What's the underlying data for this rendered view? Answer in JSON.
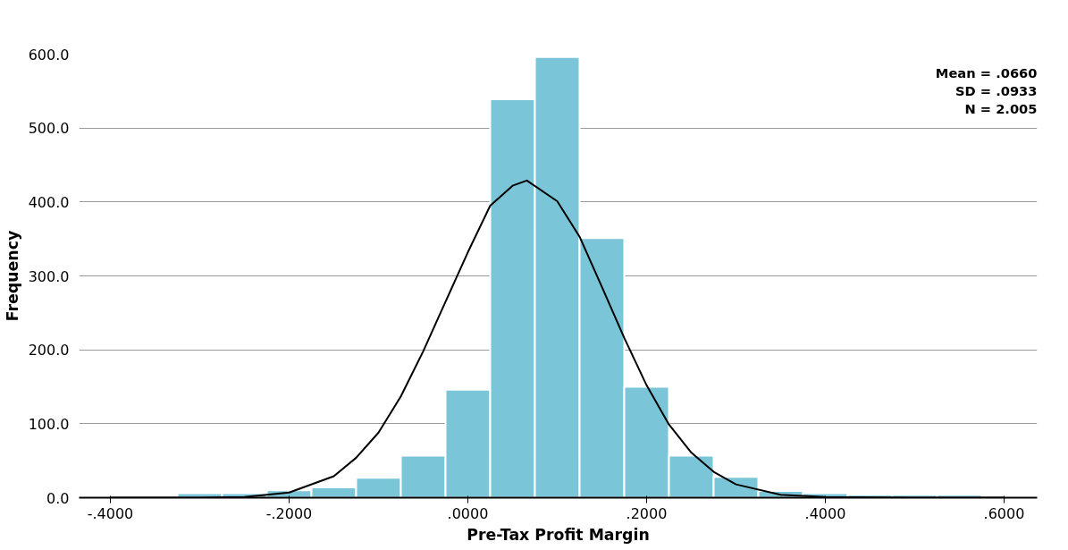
{
  "chart_data": {
    "type": "histogram",
    "xlabel": "Pre-Tax Profit Margin",
    "ylabel": "Frequency",
    "bins": [
      -0.325,
      -0.275,
      -0.225,
      -0.175,
      -0.125,
      -0.075,
      -0.025,
      0.025,
      0.075,
      0.125,
      0.175,
      0.225,
      0.275,
      0.325,
      0.375,
      0.425,
      0.475,
      0.525,
      0.575
    ],
    "values": [
      6,
      6,
      10,
      14,
      27,
      57,
      146,
      539,
      596,
      351,
      150,
      57,
      28,
      9,
      6,
      4,
      4,
      4
    ],
    "color": "#7ac5d8",
    "series": [
      {
        "type": "line",
        "color": "#000000",
        "x": [
          -0.4,
          -0.3,
          -0.25,
          -0.2,
          -0.15,
          -0.125,
          -0.1,
          -0.075,
          -0.05,
          -0.025,
          0,
          0.025,
          0.05,
          0.066,
          0.1,
          0.125,
          0.15,
          0.175,
          0.2,
          0.225,
          0.25,
          0.275,
          0.3,
          0.35,
          0.4,
          0.5,
          0.6
        ],
        "values": [
          0,
          0,
          1,
          7,
          29,
          54,
          88,
          137,
          198,
          265,
          332,
          395,
          422,
          429,
          401,
          353,
          285,
          216,
          152,
          99,
          61,
          35,
          18,
          4,
          1,
          0,
          0
        ]
      }
    ],
    "xlim": [
      -0.435,
      0.637
    ],
    "ylim": [
      0,
      600
    ],
    "xticks": [
      {
        "value": -0.4,
        "label": "-.4000"
      },
      {
        "value": -0.2,
        "label": "-.2000"
      },
      {
        "value": 0,
        "label": ".0000"
      },
      {
        "value": 0.2,
        "label": ".2000"
      },
      {
        "value": 0.4,
        "label": ".4000"
      },
      {
        "value": 0.6,
        "label": ".6000"
      }
    ],
    "yticks": [
      {
        "value": 0,
        "label": "0.0"
      },
      {
        "value": 100,
        "label": "100.0"
      },
      {
        "value": 200,
        "label": "200.0"
      },
      {
        "value": 300,
        "label": "300.0"
      },
      {
        "value": 400,
        "label": "400.0"
      },
      {
        "value": 500,
        "label": "500.0"
      },
      {
        "value": 600,
        "label": "600.0"
      }
    ],
    "grid": "y",
    "annotations": [
      "Mean = .0660",
      "SD = .0933",
      "N = 2.005"
    ]
  }
}
